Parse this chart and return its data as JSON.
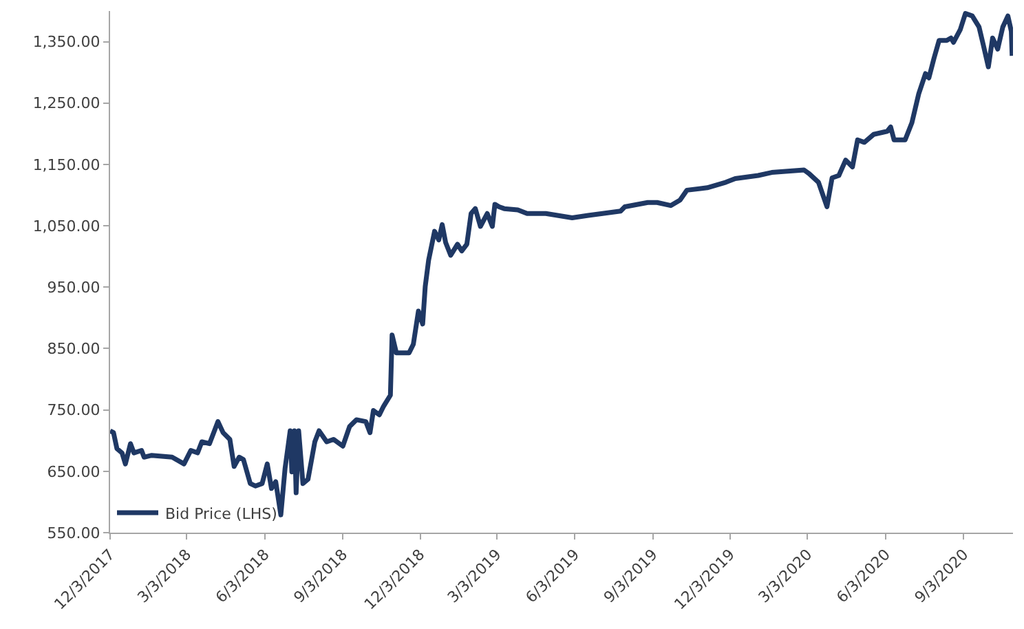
{
  "chart_data": {
    "type": "line",
    "x": [
      "2017-12-03",
      "2017-12-07",
      "2017-12-11",
      "2017-12-17",
      "2017-12-21",
      "2017-12-27",
      "2017-12-31",
      "2018-01-09",
      "2018-01-12",
      "2018-01-21",
      "2018-02-14",
      "2018-02-28",
      "2018-03-08",
      "2018-03-16",
      "2018-03-21",
      "2018-03-30",
      "2018-04-09",
      "2018-04-15",
      "2018-04-23",
      "2018-04-28",
      "2018-05-04",
      "2018-05-09",
      "2018-05-17",
      "2018-05-23",
      "2018-05-31",
      "2018-06-06",
      "2018-06-11",
      "2018-06-16",
      "2018-06-22",
      "2018-06-27",
      "2018-07-03",
      "2018-07-05",
      "2018-07-08",
      "2018-07-10",
      "2018-07-13",
      "2018-07-18",
      "2018-07-24",
      "2018-08-01",
      "2018-08-06",
      "2018-08-15",
      "2018-08-23",
      "2018-09-03",
      "2018-09-11",
      "2018-09-19",
      "2018-09-30",
      "2018-10-05",
      "2018-10-09",
      "2018-10-16",
      "2018-10-21",
      "2018-10-29",
      "2018-10-31",
      "2018-11-05",
      "2018-11-20",
      "2018-11-25",
      "2018-12-01",
      "2018-12-06",
      "2018-12-09",
      "2018-12-13",
      "2018-12-20",
      "2018-12-25",
      "2018-12-29",
      "2019-01-02",
      "2019-01-08",
      "2019-01-16",
      "2019-01-21",
      "2019-01-27",
      "2019-02-01",
      "2019-02-06",
      "2019-02-12",
      "2019-02-20",
      "2019-02-26",
      "2019-03-01",
      "2019-03-06",
      "2019-03-12",
      "2019-03-28",
      "2019-04-08",
      "2019-04-30",
      "2019-05-31",
      "2019-06-19",
      "2019-07-27",
      "2019-08-01",
      "2019-08-28",
      "2019-09-08",
      "2019-09-24",
      "2019-10-05",
      "2019-10-13",
      "2019-11-06",
      "2019-11-28",
      "2019-12-09",
      "2020-01-05",
      "2020-01-21",
      "2020-02-28",
      "2020-03-05",
      "2020-03-16",
      "2020-03-26",
      "2020-04-01",
      "2020-04-09",
      "2020-04-17",
      "2020-04-25",
      "2020-05-01",
      "2020-05-09",
      "2020-05-20",
      "2020-06-05",
      "2020-06-09",
      "2020-06-13",
      "2020-06-26",
      "2020-07-04",
      "2020-07-12",
      "2020-07-20",
      "2020-07-24",
      "2020-07-30",
      "2020-08-05",
      "2020-08-14",
      "2020-08-19",
      "2020-08-22",
      "2020-08-30",
      "2020-09-05",
      "2020-09-13",
      "2020-09-21",
      "2020-09-26",
      "2020-10-02",
      "2020-10-07",
      "2020-10-13",
      "2020-10-19",
      "2020-10-25",
      "2020-10-29",
      "2020-10-30"
    ],
    "series": [
      {
        "name": "Bid Price (LHS)",
        "color": "#1f3864",
        "values": [
          716,
          713,
          687,
          680,
          662,
          695,
          680,
          684,
          673,
          676,
          673,
          662,
          684,
          680,
          698,
          695,
          731,
          713,
          702,
          658,
          673,
          669,
          630,
          626,
          630,
          662,
          622,
          633,
          579,
          655,
          716,
          649,
          716,
          615,
          716,
          630,
          637,
          698,
          716,
          698,
          702,
          691,
          723,
          734,
          731,
          713,
          749,
          742,
          756,
          774,
          872,
          843,
          843,
          857,
          911,
          890,
          951,
          994,
          1041,
          1027,
          1052,
          1023,
          1002,
          1020,
          1009,
          1020,
          1070,
          1078,
          1049,
          1070,
          1049,
          1085,
          1081,
          1078,
          1076,
          1070,
          1070,
          1063,
          1067,
          1074,
          1081,
          1088,
          1088,
          1083,
          1092,
          1108,
          1112,
          1121,
          1127,
          1132,
          1137,
          1141,
          1135,
          1121,
          1081,
          1128,
          1132,
          1157,
          1146,
          1190,
          1186,
          1199,
          1204,
          1211,
          1190,
          1190,
          1218,
          1265,
          1298,
          1291,
          1323,
          1352,
          1352,
          1356,
          1349,
          1370,
          1396,
          1392,
          1374,
          1345,
          1309,
          1356,
          1338,
          1374,
          1392,
          1367,
          1327
        ]
      }
    ],
    "xlim": [
      "2017-12-03",
      "2020-10-31"
    ],
    "xticks": [
      {
        "value": "2017-12-03",
        "label": "12/3/2017"
      },
      {
        "value": "2018-03-03",
        "label": "3/3/2018"
      },
      {
        "value": "2018-06-03",
        "label": "6/3/2018"
      },
      {
        "value": "2018-09-03",
        "label": "9/3/2018"
      },
      {
        "value": "2018-12-03",
        "label": "12/3/2018"
      },
      {
        "value": "2019-03-03",
        "label": "3/3/2019"
      },
      {
        "value": "2019-06-03",
        "label": "6/3/2019"
      },
      {
        "value": "2019-09-03",
        "label": "9/3/2019"
      },
      {
        "value": "2019-12-03",
        "label": "12/3/2019"
      },
      {
        "value": "2020-03-03",
        "label": "3/3/2020"
      },
      {
        "value": "2020-06-03",
        "label": "6/3/2020"
      },
      {
        "value": "2020-09-03",
        "label": "9/3/2020"
      }
    ],
    "ylim": [
      550,
      1400
    ],
    "yticks": [
      {
        "value": 550,
        "label": "550.00"
      },
      {
        "value": 650,
        "label": "650.00"
      },
      {
        "value": 750,
        "label": "750.00"
      },
      {
        "value": 850,
        "label": "850.00"
      },
      {
        "value": 950,
        "label": "950.00"
      },
      {
        "value": 1050,
        "label": "1,050.00"
      },
      {
        "value": 1150,
        "label": "1,150.00"
      },
      {
        "value": 1250,
        "label": "1,250.00"
      },
      {
        "value": 1350,
        "label": "1,350.00"
      }
    ],
    "grid": false,
    "legend": "bottom left",
    "marker": "none",
    "line_style": "solid"
  }
}
